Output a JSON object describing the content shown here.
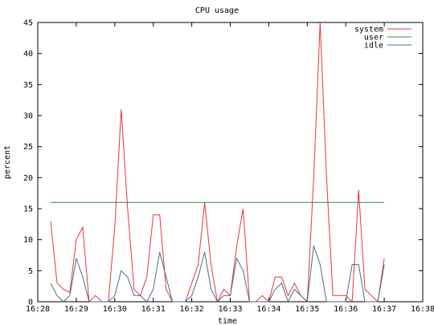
{
  "chart_data": {
    "type": "line",
    "title": "CPU usage",
    "xlabel": "time",
    "ylabel": "percent",
    "x_tick_labels": [
      "16:28",
      "16:29",
      "16:30",
      "16:31",
      "16:32",
      "16:33",
      "16:34",
      "16:35",
      "16:36",
      "16:37",
      "16:38"
    ],
    "y_tick_labels": [
      "0",
      "5",
      "10",
      "15",
      "20",
      "25",
      "30",
      "35",
      "40",
      "45"
    ],
    "xlim": [
      "16:28",
      "16:38"
    ],
    "ylim": [
      0,
      45
    ],
    "grid": false,
    "legend_position": "top-right",
    "x": [
      "16:28:20",
      "16:28:30",
      "16:28:40",
      "16:28:50",
      "16:29:00",
      "16:29:10",
      "16:29:20",
      "16:29:30",
      "16:29:40",
      "16:29:50",
      "16:30:00",
      "16:30:10",
      "16:30:20",
      "16:30:30",
      "16:30:40",
      "16:30:50",
      "16:31:00",
      "16:31:10",
      "16:31:20",
      "16:31:30",
      "16:31:40",
      "16:31:50",
      "16:32:00",
      "16:32:10",
      "16:32:20",
      "16:32:30",
      "16:32:40",
      "16:32:50",
      "16:33:00",
      "16:33:10",
      "16:33:20",
      "16:33:30",
      "16:33:40",
      "16:33:50",
      "16:34:00",
      "16:34:10",
      "16:34:20",
      "16:34:30",
      "16:34:40",
      "16:34:50",
      "16:35:00",
      "16:35:10",
      "16:35:20",
      "16:35:30",
      "16:35:40",
      "16:35:50",
      "16:36:00",
      "16:36:10",
      "16:36:20",
      "16:36:30",
      "16:36:40",
      "16:36:50",
      "16:37:00"
    ],
    "series": [
      {
        "name": "system",
        "color": "#e8353a",
        "values": [
          13,
          3,
          2,
          1.5,
          10,
          12,
          0,
          1,
          0,
          0,
          12,
          31,
          15,
          2,
          1,
          4,
          14,
          14,
          2,
          0,
          0,
          0,
          3,
          6,
          16,
          6,
          0,
          2,
          1,
          9,
          15,
          0,
          0,
          1,
          0,
          4,
          4,
          1,
          3,
          1,
          0,
          20,
          45,
          20,
          1,
          1,
          1,
          0,
          18,
          2,
          1,
          0,
          7
        ]
      },
      {
        "name": "user",
        "color": "#2e8b57",
        "values": [
          16,
          16,
          16,
          16,
          16,
          16,
          16,
          16,
          16,
          16,
          16,
          16,
          16,
          16,
          16,
          16,
          16,
          16,
          16,
          16,
          16,
          16,
          16,
          16,
          16,
          16,
          16,
          16,
          16,
          16,
          16,
          16,
          16,
          16,
          16,
          16,
          16,
          16,
          16,
          16,
          16,
          16,
          16,
          16,
          16,
          16,
          16,
          16,
          16,
          16,
          16,
          16,
          16
        ]
      },
      {
        "name": "idle",
        "color": "#4a6a8a",
        "values": [
          3,
          1,
          0,
          1,
          7,
          4,
          0,
          0,
          0,
          0,
          1,
          5,
          4,
          1,
          1,
          0,
          2,
          8,
          4,
          0,
          0,
          0,
          1,
          4,
          8,
          2,
          0,
          1,
          1,
          7,
          5,
          0,
          0,
          0,
          0,
          2,
          3,
          0,
          2,
          1,
          0,
          9,
          6,
          0,
          0,
          0,
          0,
          6,
          6,
          0,
          0,
          0,
          6
        ]
      }
    ]
  }
}
